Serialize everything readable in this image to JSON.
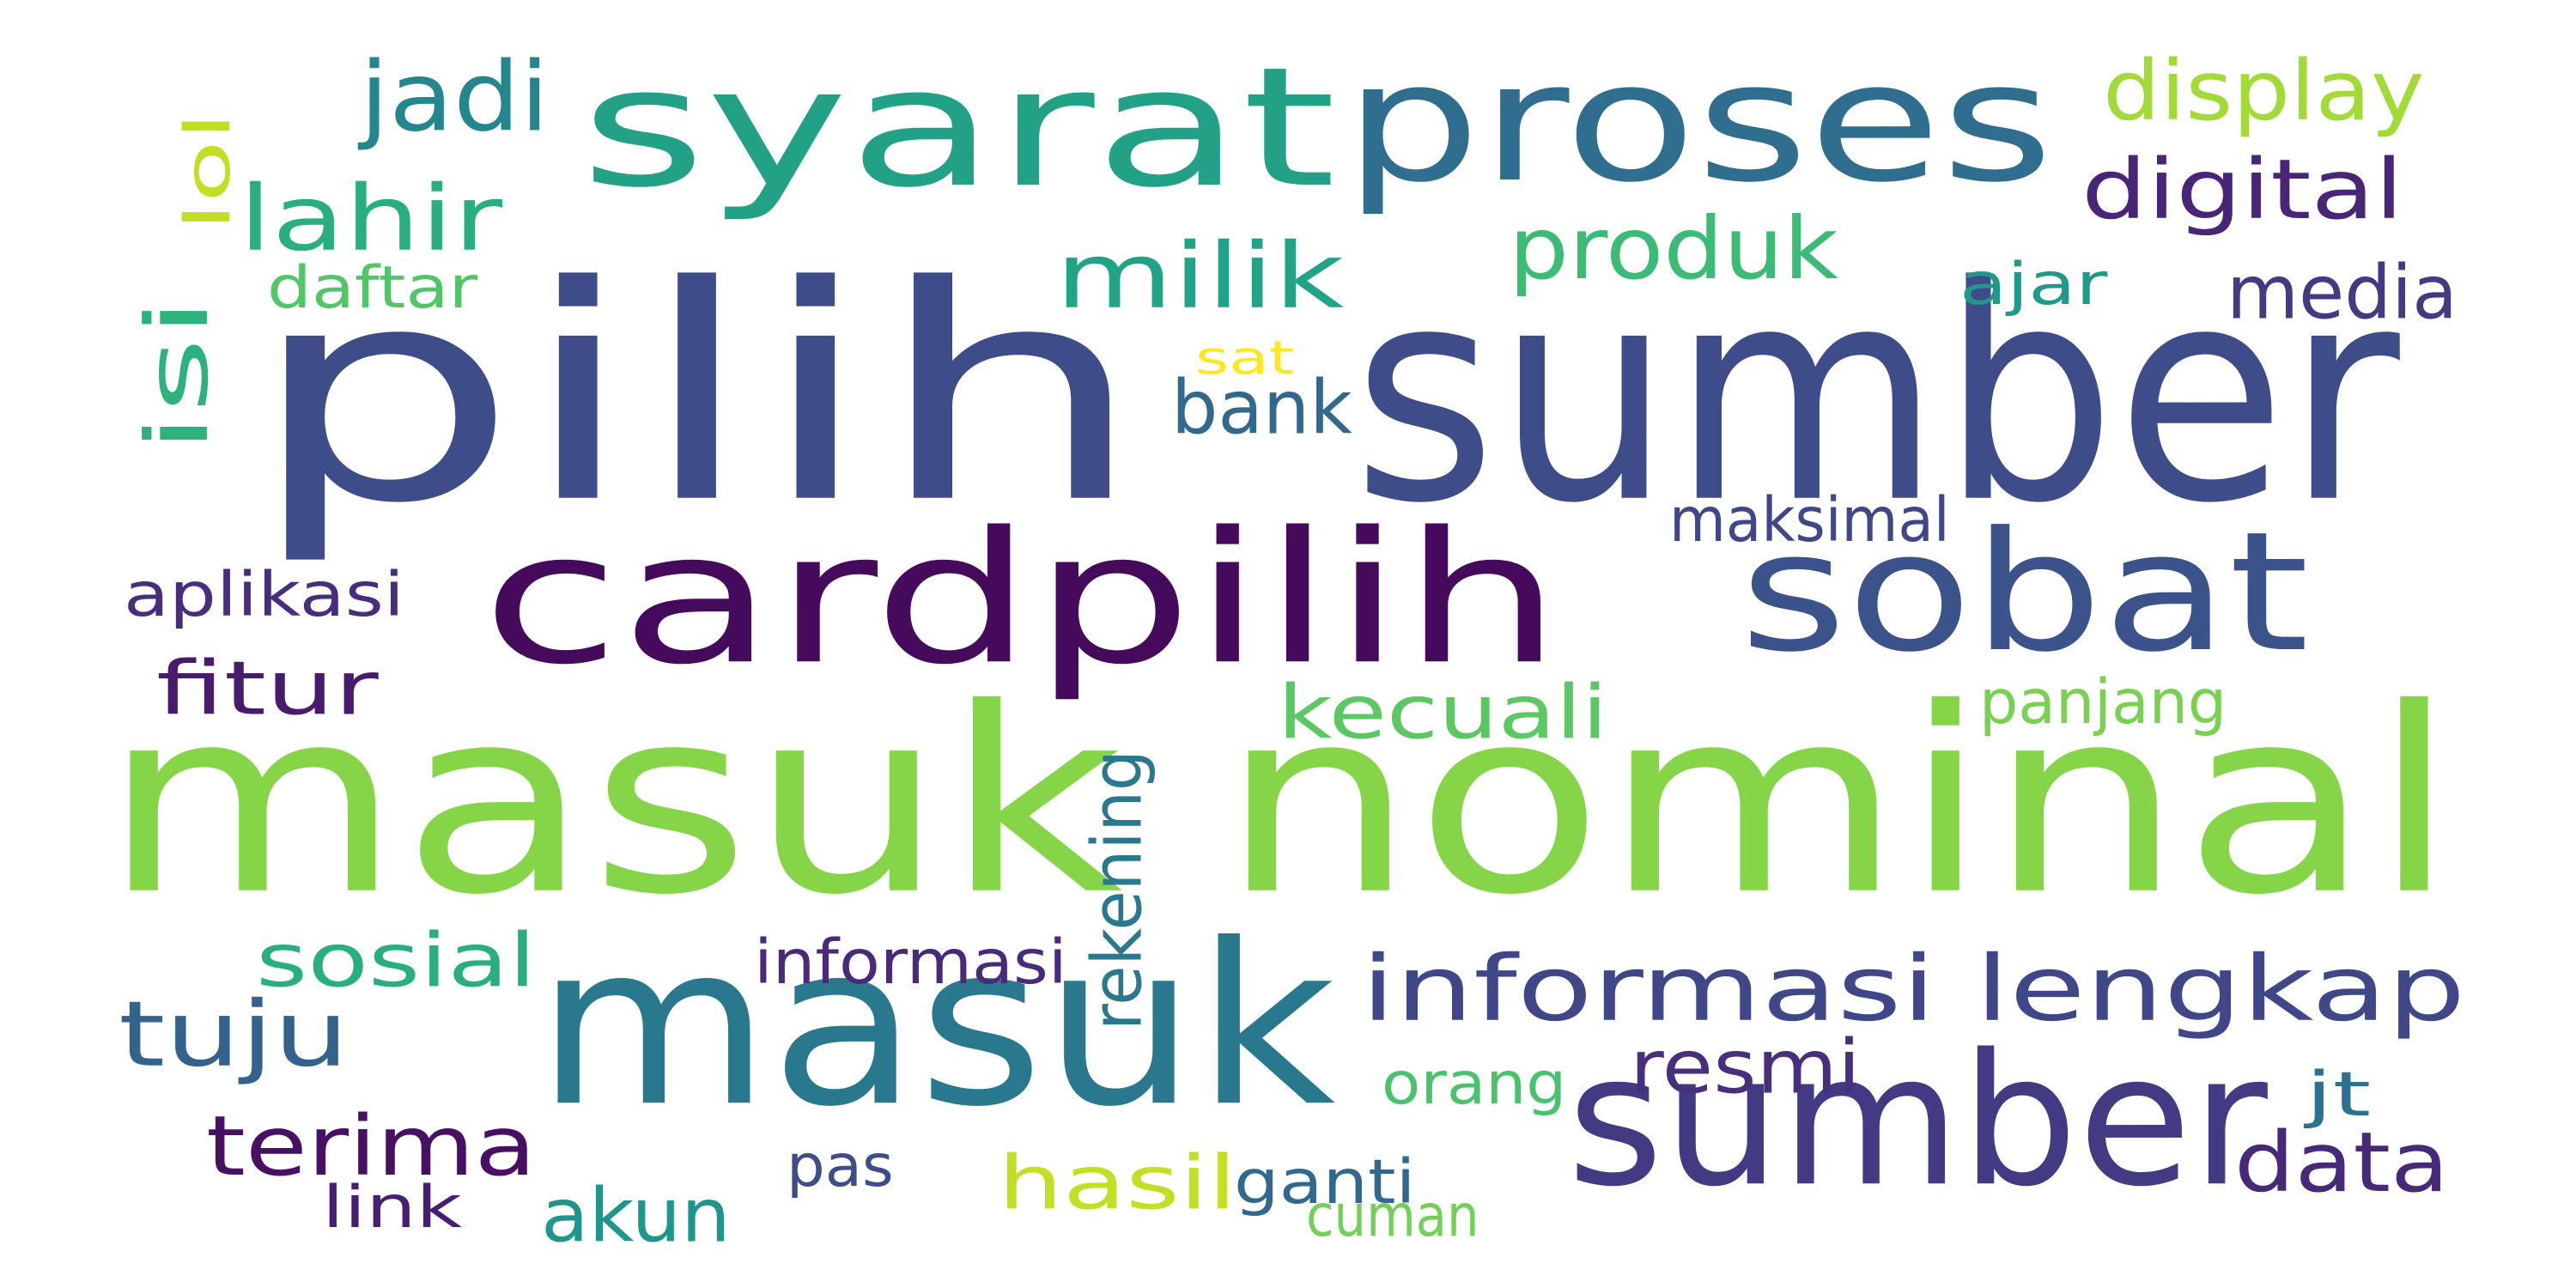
{
  "words": [
    {
      "text": "pilih",
      "color": "#3E4C8A"
    },
    {
      "text": "sumber",
      "color": "#3E4C8A"
    },
    {
      "text": "syarat",
      "color": "#22A186"
    },
    {
      "text": "proses",
      "color": "#2F6E8E"
    },
    {
      "text": "cardpilih",
      "color": "#460A5D"
    },
    {
      "text": "sobat",
      "color": "#3B528B"
    },
    {
      "text": "masuk nominal",
      "color": "#86D549"
    },
    {
      "text": "masuk",
      "color": "#2A788E"
    },
    {
      "text": "sumber",
      "color": "#433A84"
    },
    {
      "text": "informasi lengkap",
      "color": "#3F4788"
    },
    {
      "text": "jadi",
      "color": "#24878E"
    },
    {
      "text": "lahir",
      "color": "#29AF7F"
    },
    {
      "text": "display",
      "color": "#A2DA37"
    },
    {
      "text": "digital",
      "color": "#482576"
    },
    {
      "text": "produk",
      "color": "#3BBB75"
    },
    {
      "text": "milik",
      "color": "#20A386"
    },
    {
      "text": "media",
      "color": "#443983"
    },
    {
      "text": "lol",
      "color": "#C2DF23"
    },
    {
      "text": "isi",
      "color": "#2DB27D"
    },
    {
      "text": "daftar",
      "color": "#52C569"
    },
    {
      "text": "ajar",
      "color": "#1F9A8A"
    },
    {
      "text": "sat",
      "color": "#FDE725"
    },
    {
      "text": "bank",
      "color": "#31688E"
    },
    {
      "text": "maksimal",
      "color": "#3F4788"
    },
    {
      "text": "aplikasi",
      "color": "#472D7B"
    },
    {
      "text": "fitur",
      "color": "#481B6D"
    },
    {
      "text": "kecuali",
      "color": "#5CC863"
    },
    {
      "text": "panjang",
      "color": "#7AD151"
    },
    {
      "text": "rekening",
      "color": "#2A788E"
    },
    {
      "text": "sosial",
      "color": "#29AF7F"
    },
    {
      "text": "informasi",
      "color": "#472A7A"
    },
    {
      "text": "tuju",
      "color": "#33638D"
    },
    {
      "text": "resmi",
      "color": "#472F7D"
    },
    {
      "text": "terima",
      "color": "#471063"
    },
    {
      "text": "orang",
      "color": "#4AC16D"
    },
    {
      "text": "jt",
      "color": "#2C728E"
    },
    {
      "text": "data",
      "color": "#482878"
    },
    {
      "text": "akun",
      "color": "#1F968B"
    },
    {
      "text": "hasil",
      "color": "#C2DF23"
    },
    {
      "text": "ganti",
      "color": "#31688E"
    },
    {
      "text": "pas",
      "color": "#3E4C8A"
    },
    {
      "text": "cuman",
      "color": "#73D056"
    },
    {
      "text": "link",
      "color": "#481F70"
    }
  ]
}
